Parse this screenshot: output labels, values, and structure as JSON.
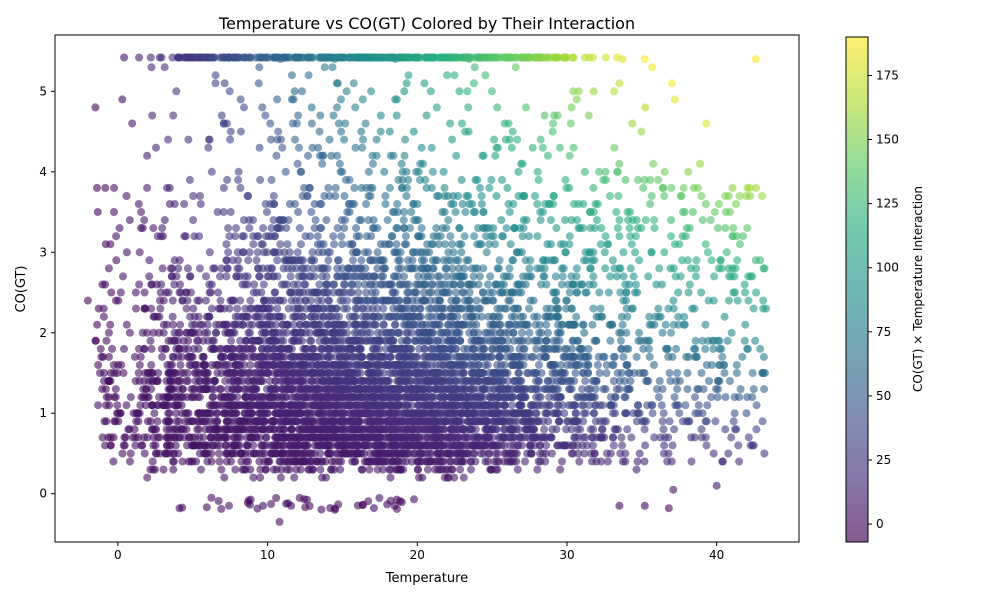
{
  "chart_data": {
    "type": "scatter",
    "title": "Temperature vs CO(GT) Colored by Their Interaction",
    "xlabel": "Temperature",
    "ylabel": "CO(GT)",
    "colorbar_label": "CO(GT) × Temperature Interaction",
    "colormap": "viridis",
    "point_alpha": 0.6,
    "xlim": [
      -4.2,
      45.5
    ],
    "ylim": [
      -0.6,
      5.7
    ],
    "clim": [
      -7,
      190
    ],
    "x_ticks": [
      0,
      10,
      20,
      30,
      40
    ],
    "y_ticks": [
      0,
      1,
      2,
      3,
      4,
      5
    ],
    "colorbar_ticks": [
      0,
      25,
      50,
      75,
      100,
      125,
      150,
      175
    ],
    "grid": false,
    "approx_point_count": 6000,
    "notable_points": [
      {
        "x": -2.0,
        "y": 2.4
      },
      {
        "x": -0.6,
        "y": 2.8
      },
      {
        "x": 0.8,
        "y": 3.4
      },
      {
        "x": 1.4,
        "y": 3.6
      },
      {
        "x": 2.2,
        "y": 5.42
      },
      {
        "x": 2.8,
        "y": 5.42
      },
      {
        "x": 4.0,
        "y": 5.42
      },
      {
        "x": 10.8,
        "y": -0.35
      },
      {
        "x": 14.5,
        "y": -0.2
      },
      {
        "x": 9.7,
        "y": -0.15
      },
      {
        "x": 33.5,
        "y": -0.15
      },
      {
        "x": 35.2,
        "y": -0.15
      },
      {
        "x": 36.8,
        "y": -0.18
      },
      {
        "x": 35.2,
        "y": 5.4
      },
      {
        "x": 35.7,
        "y": 5.3
      },
      {
        "x": 37.2,
        "y": 4.9
      },
      {
        "x": 39.3,
        "y": 4.6
      },
      {
        "x": 33.5,
        "y": 5.1
      },
      {
        "x": 31.2,
        "y": 5.42
      },
      {
        "x": 28.6,
        "y": 5.42
      },
      {
        "x": 43.2,
        "y": 2.8
      },
      {
        "x": 43.3,
        "y": 2.3
      },
      {
        "x": 43.1,
        "y": 1.5
      },
      {
        "x": 42.9,
        "y": 1.8
      },
      {
        "x": 41.5,
        "y": 0.4
      },
      {
        "x": 40.0,
        "y": 0.1
      },
      {
        "x": 37.1,
        "y": 0.05
      }
    ]
  }
}
